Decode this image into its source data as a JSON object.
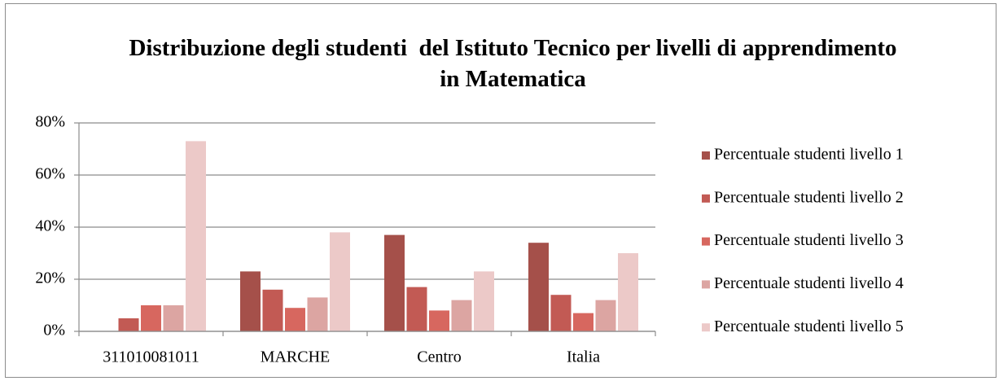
{
  "chart_data": {
    "type": "bar",
    "title": "Distribuzione degli studenti  del Istituto Tecnico per livelli di apprendimento in Matematica",
    "categories": [
      "311010081011",
      "MARCHE",
      "Centro",
      "Italia"
    ],
    "series": [
      {
        "name": "Percentuale studenti livello 1",
        "color": "#a5504a",
        "values": [
          0,
          23,
          37,
          34
        ]
      },
      {
        "name": "Percentuale studenti livello 2",
        "color": "#c25a54",
        "values": [
          5,
          16,
          17,
          14
        ]
      },
      {
        "name": "Percentuale studenti livello 3",
        "color": "#d7675f",
        "values": [
          10,
          9,
          8,
          7
        ]
      },
      {
        "name": "Percentuale studenti livello 4",
        "color": "#dca5a2",
        "values": [
          10,
          13,
          12,
          12
        ]
      },
      {
        "name": "Percentuale studenti livello 5",
        "color": "#ecc9c8",
        "values": [
          73,
          38,
          23,
          30
        ]
      }
    ],
    "ylim": [
      0,
      80
    ],
    "yticks": [
      {
        "value": 0,
        "label": "0%"
      },
      {
        "value": 20,
        "label": "20%"
      },
      {
        "value": 40,
        "label": "40%"
      },
      {
        "value": 60,
        "label": "60%"
      },
      {
        "value": 80,
        "label": "80%"
      }
    ],
    "grid": true,
    "legend": "right"
  }
}
